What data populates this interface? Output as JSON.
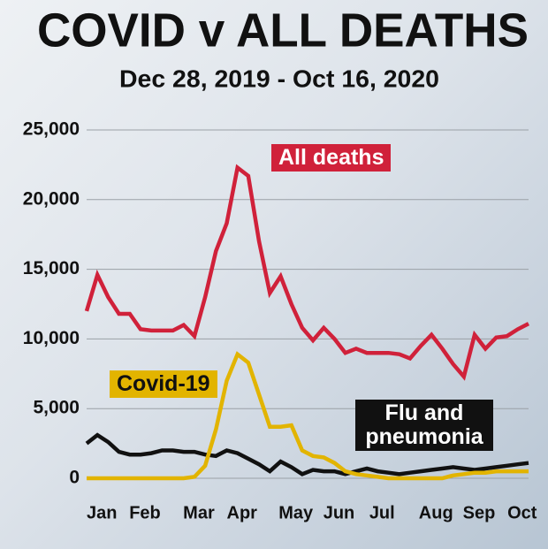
{
  "chart_data": {
    "type": "line",
    "title": "COVID v ALL DEATHS",
    "subtitle": "Dec 28, 2019 - Oct 16, 2020",
    "categories": [
      null,
      "Jan",
      null,
      null,
      null,
      "Feb",
      null,
      null,
      null,
      null,
      "Mar",
      null,
      null,
      null,
      "Apr",
      null,
      null,
      null,
      null,
      "May",
      null,
      null,
      null,
      "Jun",
      null,
      null,
      null,
      "Jul",
      null,
      null,
      null,
      null,
      "Aug",
      null,
      null,
      null,
      "Sep",
      null,
      null,
      null,
      "Oct",
      null
    ],
    "series": [
      {
        "name": "All deaths",
        "color": "#d0213a",
        "values": [
          12000,
          14600,
          13000,
          11800,
          11800,
          10700,
          10600,
          10600,
          10600,
          11000,
          10200,
          13000,
          16300,
          18300,
          22300,
          21700,
          17000,
          13300,
          14500,
          12500,
          10800,
          9900,
          10800,
          10000,
          9000,
          9300,
          9000,
          9000,
          9000,
          8900,
          8600,
          9500,
          10300,
          9300,
          8200,
          7300,
          10300,
          9300,
          10100,
          10200,
          10700,
          11100
        ]
      },
      {
        "name": "Covid-19",
        "color": "#e2b400",
        "values": [
          0,
          0,
          0,
          0,
          0,
          0,
          0,
          0,
          0,
          0,
          100,
          900,
          3500,
          7000,
          8900,
          8300,
          6000,
          3700,
          3700,
          3800,
          2000,
          1600,
          1500,
          1100,
          500,
          300,
          200,
          100,
          0,
          0,
          0,
          0,
          0,
          0,
          200,
          300,
          400,
          400,
          500,
          500,
          500,
          500
        ]
      },
      {
        "name": "Flu and pneumonia",
        "color": "#111111",
        "values": [
          2500,
          3100,
          2600,
          1900,
          1700,
          1700,
          1800,
          2000,
          2000,
          1900,
          1900,
          1700,
          1600,
          2000,
          1800,
          1400,
          1000,
          500,
          1200,
          800,
          300,
          600,
          500,
          500,
          300,
          500,
          700,
          500,
          400,
          300,
          400,
          500,
          600,
          700,
          800,
          700,
          600,
          700,
          800,
          900,
          1000,
          1100
        ]
      }
    ],
    "ylim": [
      0,
      25000
    ],
    "yticks": [
      0,
      {
        "value": 5000,
        "label": "5,000"
      },
      {
        "value": 10000,
        "label": "10,000"
      },
      {
        "value": 15000,
        "label": "15,000"
      },
      {
        "value": 20000,
        "label": "20,000"
      },
      {
        "value": 25000,
        "label": "25,000"
      }
    ],
    "grid": true
  }
}
